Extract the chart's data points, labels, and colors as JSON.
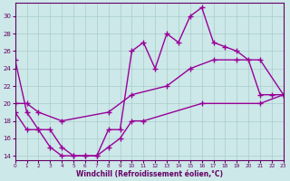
{
  "xlabel": "Windchill (Refroidissement éolien,°C)",
  "background_color": "#cce8e8",
  "grid_color": "#aacccc",
  "line_color": "#990099",
  "xlim": [
    0,
    23
  ],
  "ylim": [
    13.5,
    31.5
  ],
  "yticks": [
    14,
    16,
    18,
    20,
    22,
    24,
    26,
    28,
    30
  ],
  "xticks": [
    0,
    1,
    2,
    3,
    4,
    5,
    6,
    7,
    8,
    9,
    10,
    11,
    12,
    13,
    14,
    15,
    16,
    17,
    18,
    19,
    20,
    21,
    22,
    23
  ],
  "line1_x": [
    0,
    1,
    2,
    3,
    4,
    5,
    6,
    7,
    8,
    9,
    10,
    11,
    12,
    13,
    14,
    15,
    16,
    17,
    18,
    19,
    20,
    21,
    22,
    23
  ],
  "line1_y": [
    25,
    19,
    17,
    17,
    15,
    14,
    14,
    14,
    17,
    17,
    26,
    27,
    24,
    28,
    27,
    30,
    31,
    27,
    26.5,
    26,
    25,
    21,
    21,
    21
  ],
  "line2_x": [
    0,
    1,
    2,
    4,
    8,
    10,
    13,
    15,
    17,
    19,
    21,
    23
  ],
  "line2_y": [
    20,
    20,
    19,
    18,
    19,
    21,
    22,
    24,
    25,
    25,
    25,
    21
  ],
  "line3_x": [
    0,
    1,
    2,
    3,
    4,
    5,
    6,
    7,
    8,
    9,
    10,
    11,
    16,
    21,
    23
  ],
  "line3_y": [
    19,
    17,
    17,
    15,
    14,
    14,
    14,
    14,
    15,
    16,
    18,
    18,
    20,
    20,
    21
  ]
}
